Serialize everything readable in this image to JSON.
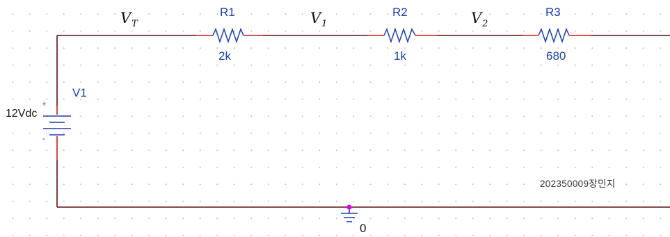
{
  "nodes": [
    {
      "main": "V",
      "sub": "T"
    },
    {
      "main": "V",
      "sub": "1"
    },
    {
      "main": "V",
      "sub": "2"
    }
  ],
  "resistors": [
    {
      "ref": "R1",
      "value": "2k"
    },
    {
      "ref": "R2",
      "value": "1k"
    },
    {
      "ref": "R3",
      "value": "680"
    }
  ],
  "source": {
    "ref": "V1",
    "value": "12Vdc",
    "plus": "+",
    "minus": "-"
  },
  "ground": {
    "label": "0"
  },
  "note": "202350009장민지",
  "colors": {
    "wire": "#5a1010",
    "pin": "#c91b1b",
    "part": "#1f3fae",
    "junction": "#e000e0"
  }
}
